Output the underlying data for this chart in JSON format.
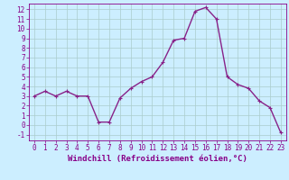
{
  "hours": [
    0,
    1,
    2,
    3,
    4,
    5,
    6,
    7,
    8,
    9,
    10,
    11,
    12,
    13,
    14,
    15,
    16,
    17,
    18,
    19,
    20,
    21,
    22,
    23
  ],
  "values": [
    3.0,
    3.5,
    3.0,
    3.5,
    3.0,
    3.0,
    0.3,
    0.3,
    2.8,
    3.8,
    4.5,
    5.0,
    6.5,
    8.8,
    9.0,
    11.8,
    12.2,
    11.0,
    5.0,
    4.2,
    3.8,
    2.5,
    1.8,
    -0.8
  ],
  "line_color": "#882288",
  "marker": "+",
  "marker_size": 3,
  "marker_linewidth": 0.8,
  "bg_color": "#cceeff",
  "grid_color": "#aacccc",
  "xlabel": "Windchill (Refroidissement éolien,°C)",
  "xlabel_color": "#880088",
  "yticks": [
    -1,
    0,
    1,
    2,
    3,
    4,
    5,
    6,
    7,
    8,
    9,
    10,
    11,
    12
  ],
  "xticks": [
    0,
    1,
    2,
    3,
    4,
    5,
    6,
    7,
    8,
    9,
    10,
    11,
    12,
    13,
    14,
    15,
    16,
    17,
    18,
    19,
    20,
    21,
    22,
    23
  ],
  "ylim": [
    -1.6,
    12.6
  ],
  "xlim": [
    -0.5,
    23.5
  ],
  "tick_label_color": "#880088",
  "tick_fontsize": 5.5,
  "xlabel_fontsize": 6.5,
  "linewidth": 1.0
}
